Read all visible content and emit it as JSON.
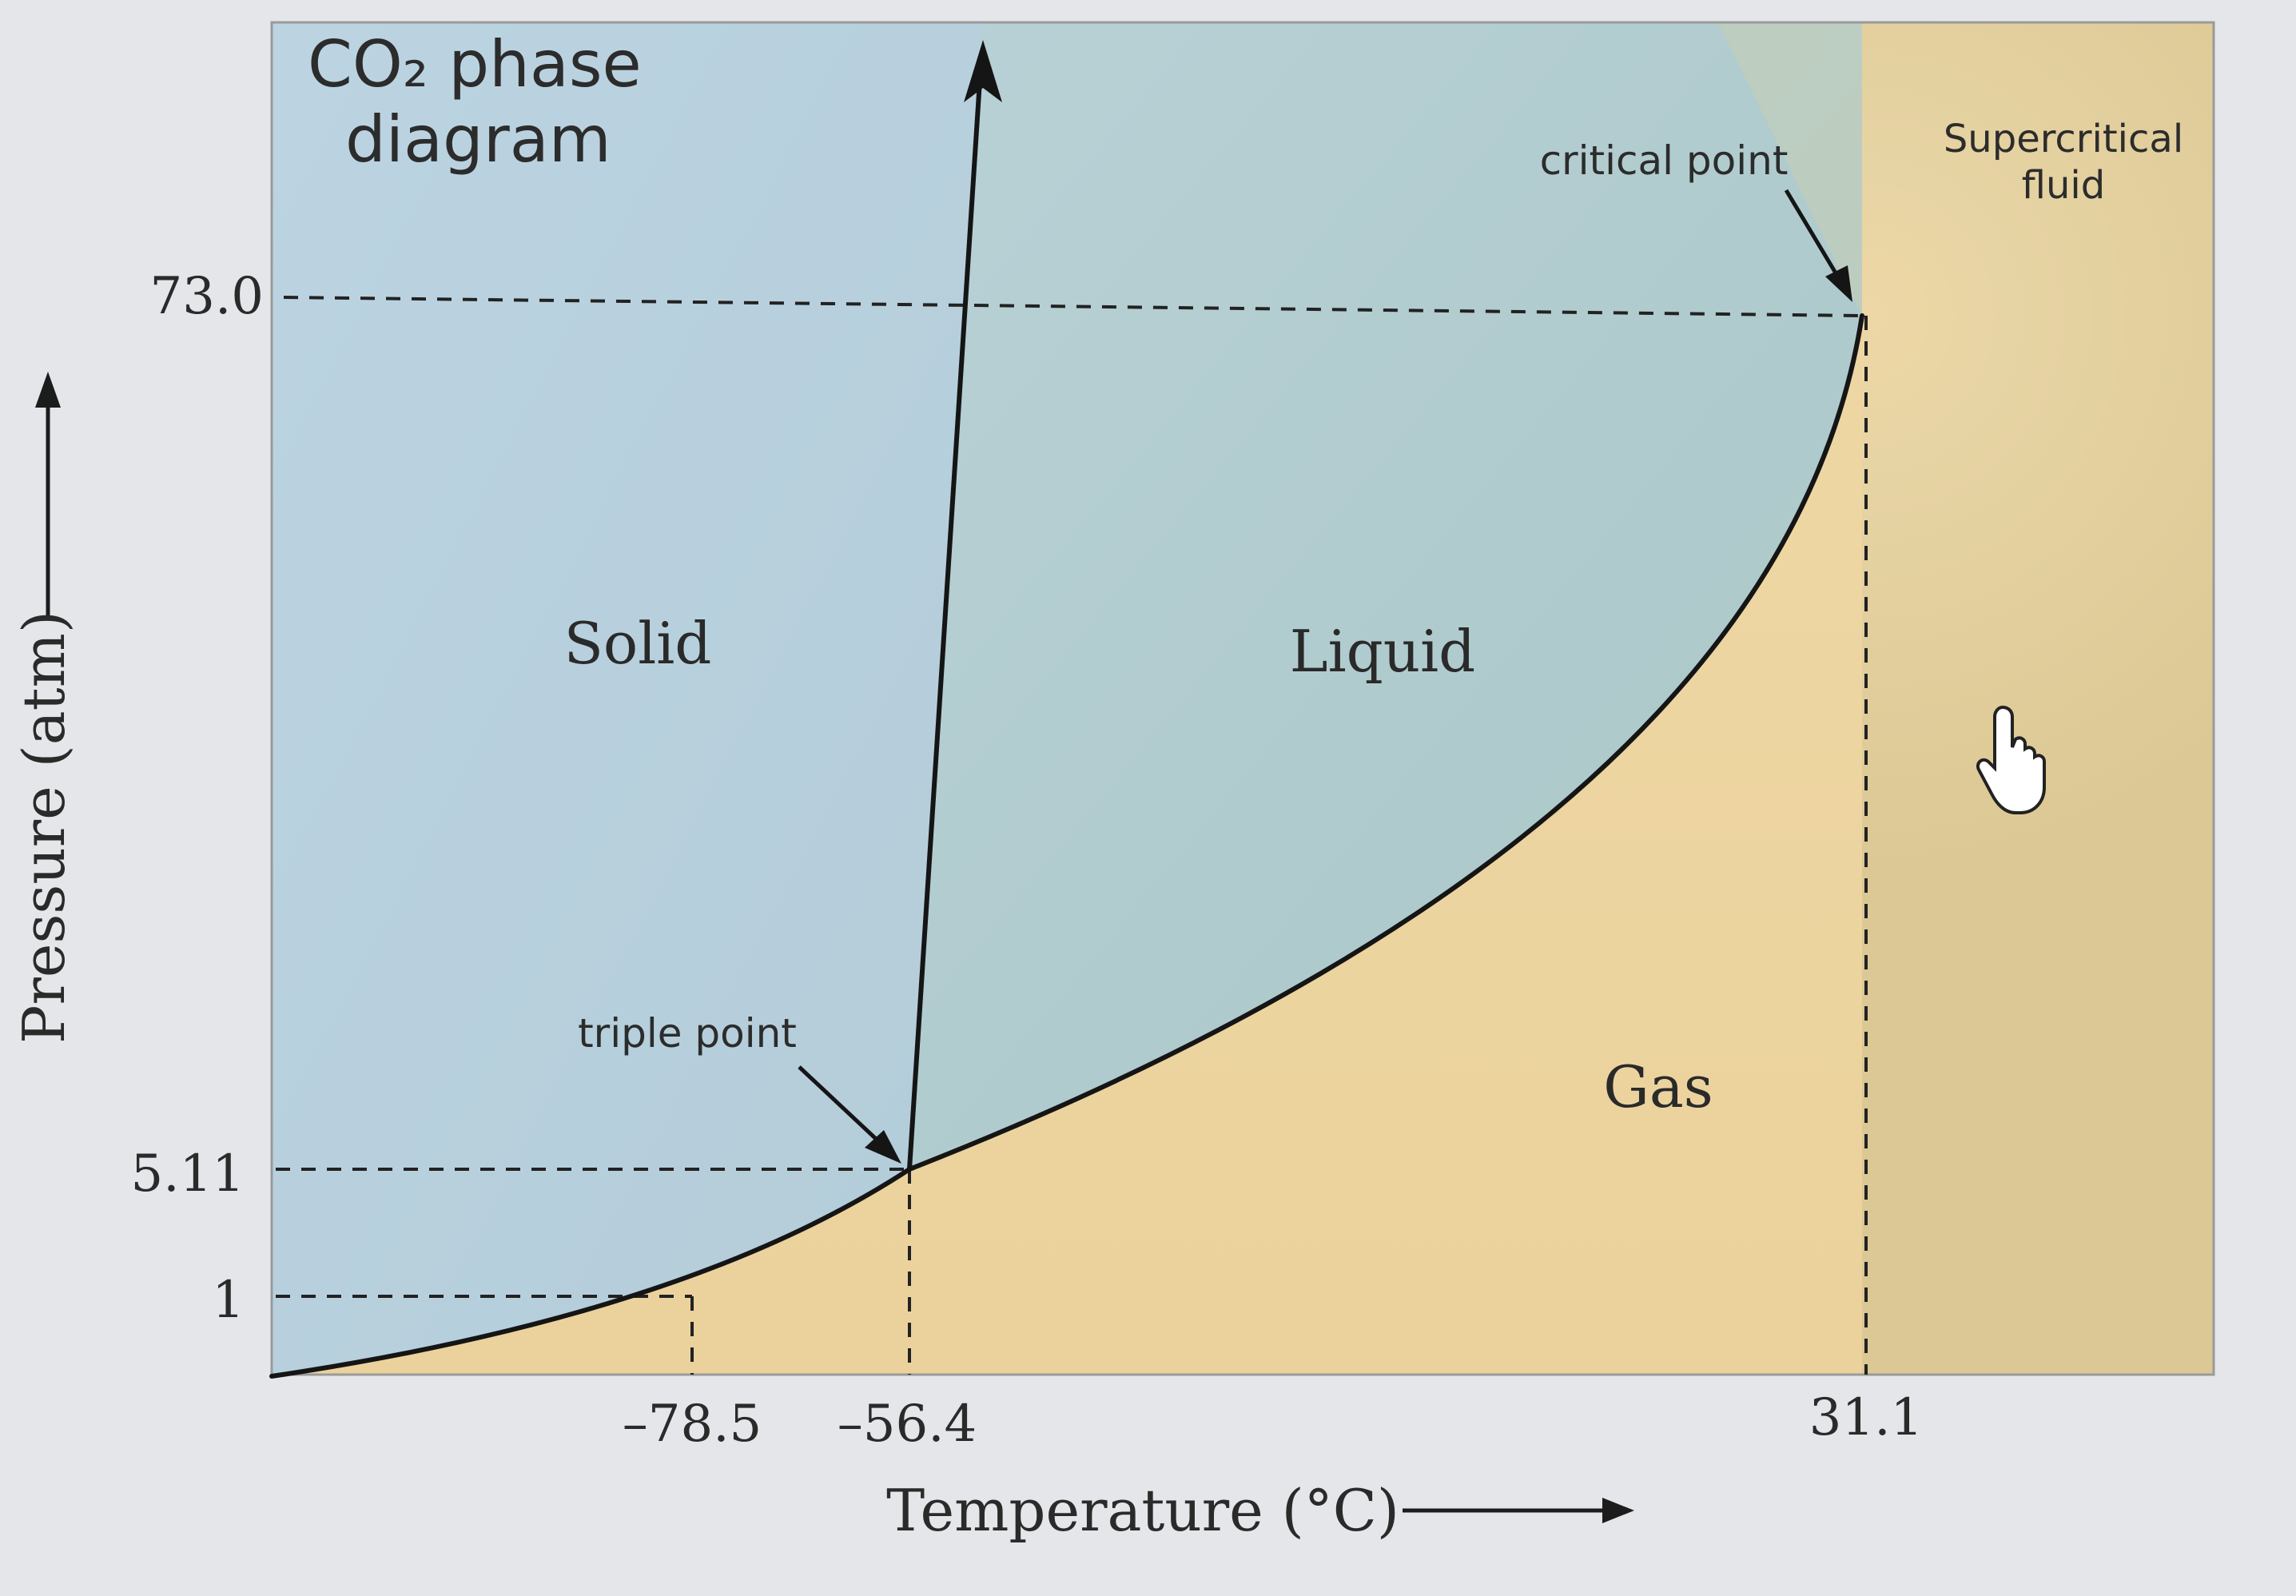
{
  "diagram": {
    "title_line1": "CO₂ phase",
    "title_line2": "diagram",
    "regions": {
      "solid": "Solid",
      "liquid": "Liquid",
      "gas": "Gas",
      "supercritical_line1": "Supercritical",
      "supercritical_line2": "fluid"
    },
    "annotations": {
      "triple_point": "triple point",
      "critical_point": "critical point"
    },
    "y_ticks": [
      "73.0",
      "5.11",
      "1"
    ],
    "x_ticks": [
      "–78.5",
      "–56.4",
      "31.1"
    ],
    "ylabel": "Pressure (atm)",
    "xlabel": "Temperature (°C)",
    "colors": {
      "solid_liquid_fill": "#b9d3df",
      "liquid_fill": "#b2ccc9",
      "gas_fill": "#eed7a5",
      "supercritical_fill": "#e6cf98",
      "line": "#151515",
      "page_background": "#e6e7ec"
    },
    "cursor_icon": "hand-pointer-icon"
  }
}
